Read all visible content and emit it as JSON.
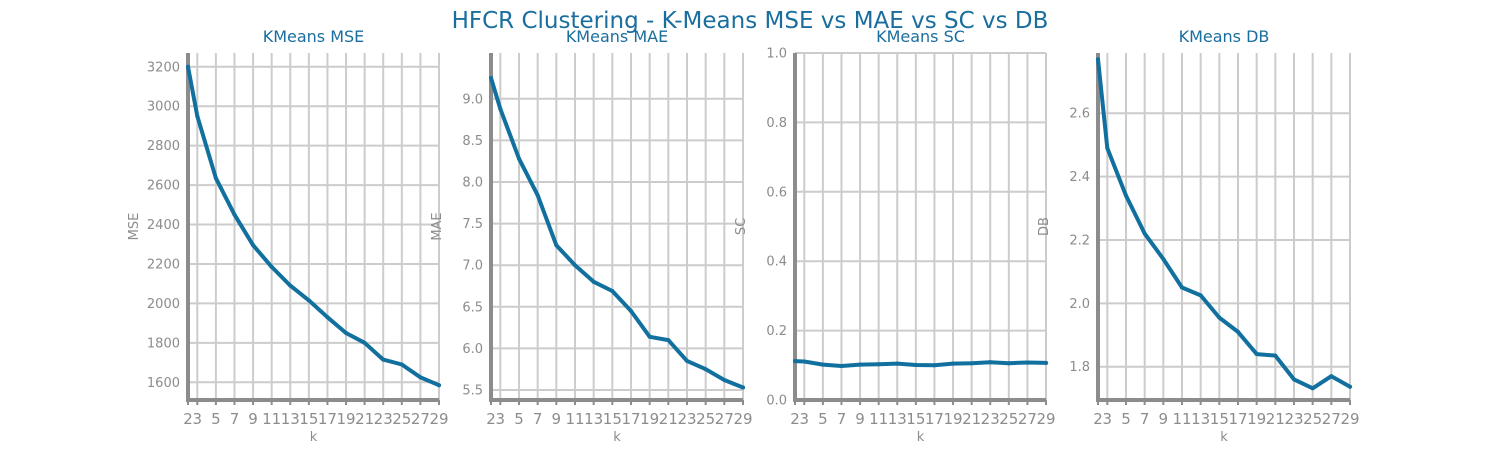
{
  "title": "HFCR Clustering - K-Means MSE vs MAE vs SC vs DB",
  "colors": {
    "series": "#11709e",
    "title": "#1a6e9e",
    "grid": "#cccccc",
    "axis": "#8c8c8c"
  },
  "chart_data": [
    {
      "type": "line",
      "title": "KMeans MSE",
      "xlabel": "k",
      "ylabel": "MSE",
      "grid": true,
      "x": [
        2,
        3,
        5,
        7,
        9,
        11,
        13,
        15,
        17,
        19,
        21,
        23,
        25,
        27,
        29
      ],
      "xticks": [
        2,
        3,
        5,
        7,
        9,
        11,
        13,
        15,
        17,
        19,
        21,
        23,
        25,
        27,
        29
      ],
      "xlim": [
        2,
        29
      ],
      "values": [
        3200,
        2950,
        2635,
        2450,
        2295,
        2185,
        2090,
        2015,
        1930,
        1850,
        1800,
        1715,
        1690,
        1625,
        1585
      ],
      "yticks": [
        1600,
        1800,
        2000,
        2200,
        2400,
        2600,
        2800,
        3000,
        3200
      ],
      "ylim": [
        1510,
        3270
      ]
    },
    {
      "type": "line",
      "title": "KMeans MAE",
      "xlabel": "k",
      "ylabel": "MAE",
      "grid": true,
      "x": [
        2,
        3,
        5,
        7,
        9,
        11,
        13,
        15,
        17,
        19,
        21,
        23,
        25,
        27,
        29
      ],
      "xticks": [
        2,
        3,
        5,
        7,
        9,
        11,
        13,
        15,
        17,
        19,
        21,
        23,
        25,
        27,
        29
      ],
      "xlim": [
        2,
        29
      ],
      "values": [
        9.25,
        8.88,
        8.28,
        7.84,
        7.24,
        7.0,
        6.8,
        6.69,
        6.45,
        6.14,
        6.1,
        5.85,
        5.75,
        5.62,
        5.53
      ],
      "yticks": [
        "5.5",
        "6.0",
        "6.5",
        "7.0",
        "7.5",
        "8.0",
        "8.5",
        "9.0"
      ],
      "ylim": [
        5.38,
        9.55
      ]
    },
    {
      "type": "line",
      "title": "KMeans SC",
      "xlabel": "k",
      "ylabel": "SC",
      "grid": true,
      "x": [
        2,
        3,
        5,
        7,
        9,
        11,
        13,
        15,
        17,
        19,
        21,
        23,
        25,
        27,
        29
      ],
      "xticks": [
        2,
        3,
        5,
        7,
        9,
        11,
        13,
        15,
        17,
        19,
        21,
        23,
        25,
        27,
        29
      ],
      "xlim": [
        2,
        29
      ],
      "values": [
        0.112,
        0.111,
        0.102,
        0.098,
        0.102,
        0.103,
        0.105,
        0.101,
        0.1,
        0.105,
        0.106,
        0.109,
        0.106,
        0.108,
        0.107
      ],
      "yticks": [
        "0.0",
        "0.2",
        "0.4",
        "0.6",
        "0.8",
        "1.0"
      ],
      "ylim": [
        0.0,
        1.0
      ]
    },
    {
      "type": "line",
      "title": "KMeans DB",
      "xlabel": "k",
      "ylabel": "DB",
      "grid": true,
      "x": [
        2,
        3,
        5,
        7,
        9,
        11,
        13,
        15,
        17,
        19,
        21,
        23,
        25,
        27,
        29
      ],
      "xticks": [
        2,
        3,
        5,
        7,
        9,
        11,
        13,
        15,
        17,
        19,
        21,
        23,
        25,
        27,
        29
      ],
      "xlim": [
        2,
        29
      ],
      "values": [
        2.77,
        2.49,
        2.34,
        2.22,
        2.14,
        2.05,
        2.025,
        1.955,
        1.91,
        1.84,
        1.835,
        1.76,
        1.732,
        1.77,
        1.737
      ],
      "yticks": [
        "1.8",
        "2.0",
        "2.2",
        "2.4",
        "2.6"
      ],
      "ylim": [
        1.695,
        2.79
      ]
    }
  ]
}
